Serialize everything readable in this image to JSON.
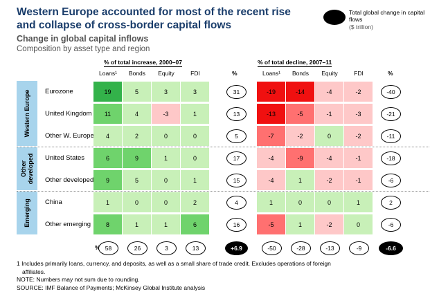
{
  "header": {
    "title": "Western Europe accounted for most of the recent rise and collapse of cross-border capital flows",
    "subtitle": "Change in global capital inflows",
    "subtitle2": "Composition by asset type and region"
  },
  "legend": {
    "text": "Total global change in capital flows",
    "unit": "($ trillion)"
  },
  "chart_data": {
    "type": "heatmap",
    "panels": [
      {
        "title": "% of total increase, 2000–07",
        "columns": [
          "Loans¹",
          "Bonds",
          "Equity",
          "FDI"
        ],
        "total_label": "%"
      },
      {
        "title": "% of total decline, 2007–11",
        "columns": [
          "Loans¹",
          "Bonds",
          "Equity",
          "FDI"
        ],
        "total_label": "%"
      }
    ],
    "groups": [
      {
        "label": "Western Europe",
        "rows": [
          0,
          1,
          2
        ]
      },
      {
        "label": "Other developed",
        "rows": [
          3,
          4
        ]
      },
      {
        "label": "Emerging",
        "rows": [
          5,
          6
        ]
      }
    ],
    "rows": [
      {
        "region": "Eurozone",
        "increase": [
          19,
          5,
          3,
          3
        ],
        "increase_total": 31,
        "decline": [
          -19,
          -14,
          -4,
          -2
        ],
        "decline_total": -40
      },
      {
        "region": "United Kingdom",
        "increase": [
          11,
          4,
          -3,
          1
        ],
        "increase_total": 13,
        "decline": [
          -13,
          -5,
          -1,
          -3
        ],
        "decline_total": -21
      },
      {
        "region": "Other W. Europe",
        "increase": [
          4,
          2,
          0,
          0
        ],
        "increase_total": 5,
        "decline": [
          -7,
          -2,
          0,
          -2
        ],
        "decline_total": -11
      },
      {
        "region": "United States",
        "increase": [
          6,
          9,
          1,
          0
        ],
        "increase_total": 17,
        "decline": [
          -4,
          -9,
          -4,
          -1
        ],
        "decline_total": -18
      },
      {
        "region": "Other developed",
        "increase": [
          9,
          5,
          0,
          1
        ],
        "increase_total": 15,
        "decline": [
          -4,
          1,
          -2,
          -1
        ],
        "decline_total": -6
      },
      {
        "region": "China",
        "increase": [
          1,
          0,
          0,
          2
        ],
        "increase_total": 4,
        "decline": [
          1,
          0,
          0,
          1
        ],
        "decline_total": 2
      },
      {
        "region": "Other emerging",
        "increase": [
          8,
          1,
          1,
          6
        ],
        "increase_total": 16,
        "decline": [
          -5,
          1,
          -2,
          0
        ],
        "decline_total": -6
      }
    ],
    "totals": {
      "label": "%",
      "increase": [
        58,
        26,
        3,
        13
      ],
      "increase_grand": "+6.9",
      "decline": [
        -50,
        -28,
        -13,
        -9
      ],
      "decline_grand": "-6.6"
    },
    "colors": {
      "green_dark": "#33b24a",
      "green_mid": "#6fd36c",
      "green_light": "#c8f0b8",
      "red_dark": "#f01010",
      "red_mid": "#ff7070",
      "red_light": "#fec8c8",
      "zero_green": "#c8f0b8",
      "zero_red": "#fec8c8",
      "group_blue": "#a8d4ec",
      "title_blue": "#1a3d6b"
    }
  },
  "notes": {
    "footnote_line1": "1  Includes primarily loans, currency, and deposits, as well as a small share of trade credit. Excludes operations of foreign",
    "footnote_line2": "affiliates.",
    "note": "NOTE: Numbers may not sum due to rounding.",
    "source": "SOURCE: IMF Balance of Payments; McKinsey Global Institute analysis"
  }
}
